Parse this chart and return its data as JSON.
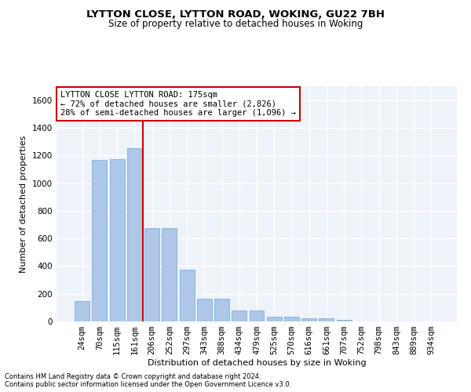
{
  "title": "LYTTON CLOSE, LYTTON ROAD, WOKING, GU22 7BH",
  "subtitle": "Size of property relative to detached houses in Woking",
  "xlabel": "Distribution of detached houses by size in Woking",
  "ylabel": "Number of detached properties",
  "categories": [
    "24sqm",
    "70sqm",
    "115sqm",
    "161sqm",
    "206sqm",
    "252sqm",
    "297sqm",
    "343sqm",
    "388sqm",
    "434sqm",
    "479sqm",
    "525sqm",
    "570sqm",
    "616sqm",
    "661sqm",
    "707sqm",
    "752sqm",
    "798sqm",
    "843sqm",
    "889sqm",
    "934sqm"
  ],
  "values": [
    150,
    1170,
    1175,
    1255,
    675,
    675,
    375,
    165,
    165,
    80,
    80,
    35,
    35,
    20,
    20,
    13,
    0,
    0,
    0,
    0,
    0
  ],
  "bar_color": "#aec6e8",
  "bar_edge_color": "#6aaad4",
  "vline_x": 3.5,
  "vline_color": "#cc0000",
  "ylim": [
    0,
    1700
  ],
  "yticks": [
    0,
    200,
    400,
    600,
    800,
    1000,
    1200,
    1400,
    1600
  ],
  "annotation_title": "LYTTON CLOSE LYTTON ROAD: 175sqm",
  "annotation_line1": "← 72% of detached houses are smaller (2,826)",
  "annotation_line2": "28% of semi-detached houses are larger (1,096) →",
  "annotation_box_color": "#ffffff",
  "annotation_box_edge": "#cc0000",
  "footer1": "Contains HM Land Registry data © Crown copyright and database right 2024.",
  "footer2": "Contains public sector information licensed under the Open Government Licence v3.0.",
  "bg_color": "#eef2f9",
  "grid_color": "#ffffff",
  "title_fontsize": 9.5,
  "subtitle_fontsize": 8.5,
  "axis_label_fontsize": 8,
  "tick_fontsize": 7.5,
  "footer_fontsize": 6.0,
  "annot_fontsize": 7.5
}
